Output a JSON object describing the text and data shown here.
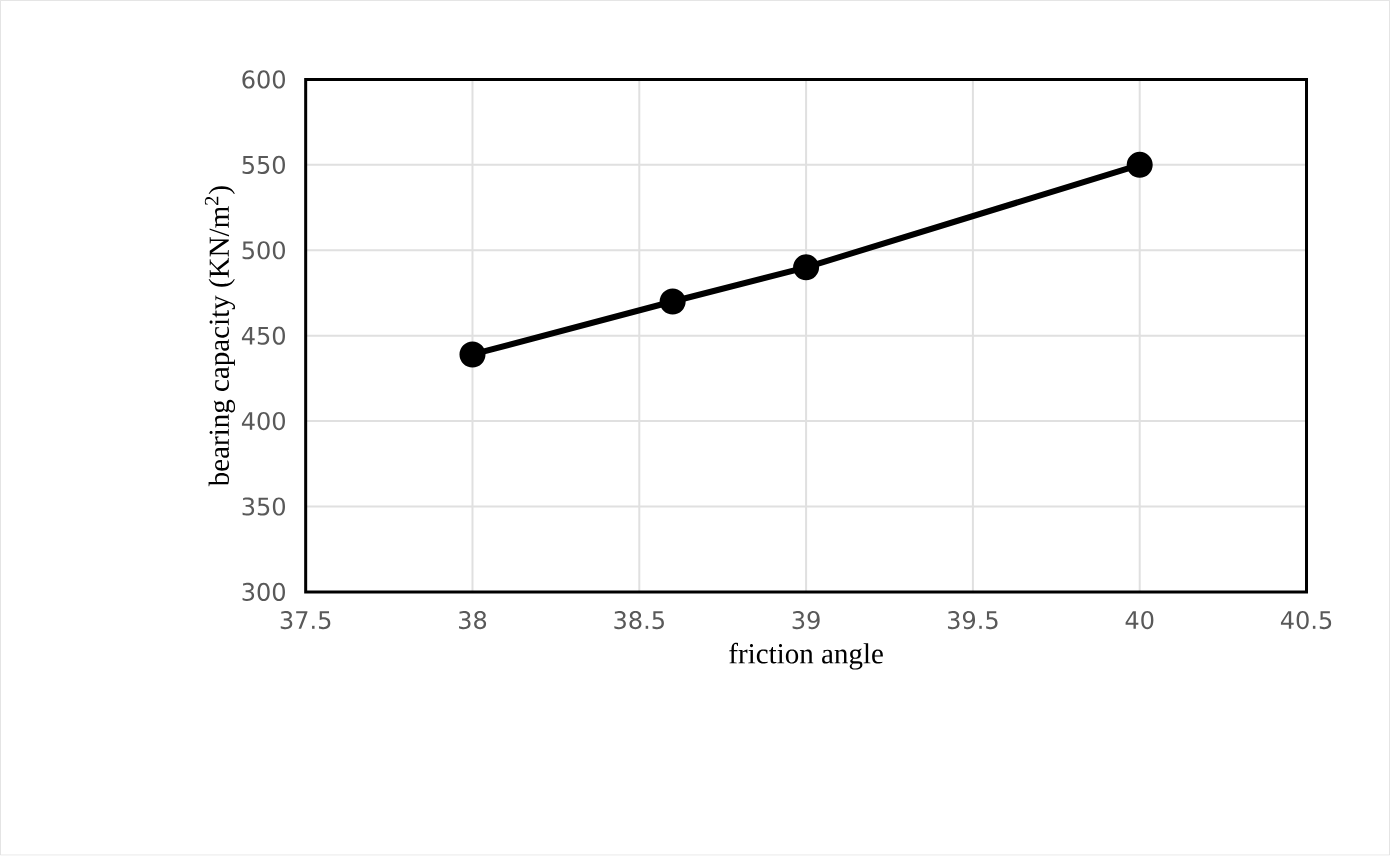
{
  "chart_data": {
    "type": "line",
    "xlabel": "friction angle",
    "ylabel": "bearing capacity (KN/m$^{2}$)",
    "x": [
      38,
      38.6,
      39,
      40
    ],
    "series": [
      {
        "color": "#000000",
        "values": [
          439,
          470,
          490,
          550
        ]
      }
    ],
    "xlim": [
      37.5,
      40.5
    ],
    "xticks": [
      37.5,
      38,
      38.5,
      39,
      39.5,
      40,
      40.5
    ],
    "ylim": [
      300,
      600
    ],
    "yticks": [
      300,
      350,
      400,
      450,
      500,
      550,
      600
    ],
    "grid": true,
    "marker": "circle",
    "line_style": "solid"
  }
}
